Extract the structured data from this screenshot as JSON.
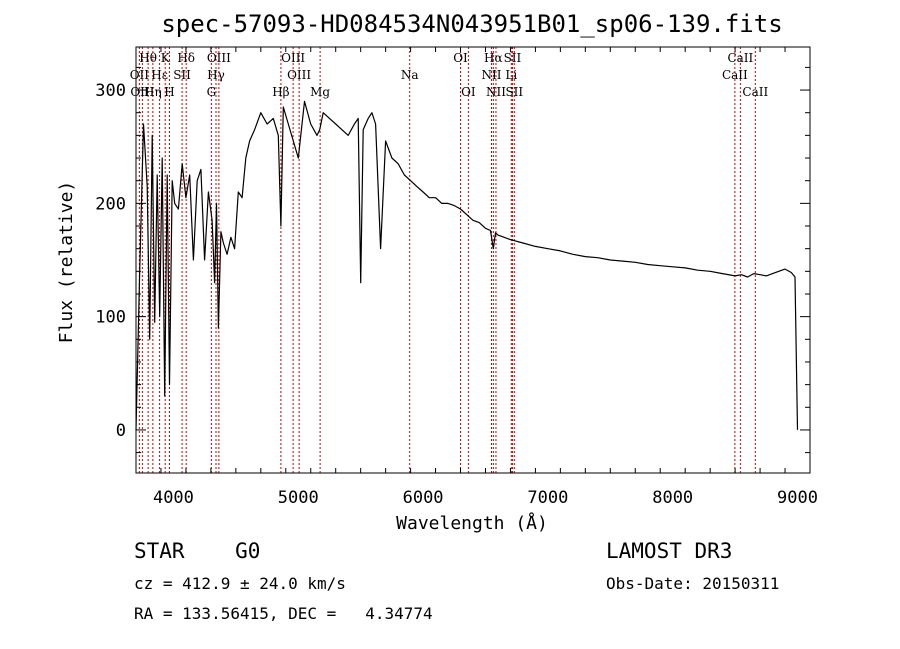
{
  "chart_data": {
    "type": "line",
    "title": "spec-57093-HD084534N043951B01_sp06-139.fits",
    "xlabel": "Wavelength (Å)",
    "ylabel": "Flux (relative)",
    "xlim": [
      3700,
      9100
    ],
    "ylim": [
      -38,
      338
    ],
    "xticks": [
      4000,
      5000,
      6000,
      7000,
      8000,
      9000
    ],
    "yticks": [
      0,
      100,
      200,
      300
    ],
    "series": [
      {
        "name": "flux",
        "x": [
          3700,
          3730,
          3760,
          3790,
          3810,
          3830,
          3850,
          3870,
          3890,
          3910,
          3930,
          3950,
          3968,
          3990,
          4010,
          4040,
          4070,
          4100,
          4130,
          4160,
          4190,
          4220,
          4250,
          4280,
          4310,
          4330,
          4345,
          4360,
          4380,
          4400,
          4430,
          4460,
          4490,
          4520,
          4550,
          4580,
          4610,
          4650,
          4700,
          4750,
          4800,
          4840,
          4861,
          4880,
          4920,
          4960,
          5000,
          5050,
          5100,
          5150,
          5172,
          5200,
          5250,
          5300,
          5350,
          5400,
          5450,
          5480,
          5500,
          5520,
          5560,
          5590,
          5620,
          5660,
          5700,
          5750,
          5800,
          5850,
          5900,
          5950,
          6000,
          6050,
          6100,
          6150,
          6200,
          6250,
          6300,
          6350,
          6400,
          6450,
          6500,
          6540,
          6563,
          6580,
          6600,
          6650,
          6700,
          6800,
          6900,
          7000,
          7100,
          7200,
          7300,
          7400,
          7500,
          7600,
          7700,
          7800,
          7900,
          8000,
          8100,
          8200,
          8300,
          8400,
          8500,
          8550,
          8600,
          8650,
          8700,
          8750,
          8800,
          8850,
          8900,
          8950,
          8980,
          9000
        ],
        "values": [
          0,
          140,
          270,
          215,
          80,
          260,
          95,
          225,
          100,
          240,
          30,
          225,
          40,
          220,
          200,
          195,
          235,
          205,
          225,
          150,
          220,
          230,
          150,
          210,
          185,
          130,
          200,
          90,
          175,
          165,
          155,
          170,
          160,
          210,
          205,
          240,
          255,
          265,
          280,
          270,
          275,
          260,
          180,
          285,
          270,
          255,
          240,
          290,
          270,
          260,
          265,
          280,
          275,
          270,
          265,
          260,
          270,
          275,
          130,
          265,
          275,
          280,
          270,
          160,
          255,
          240,
          235,
          225,
          220,
          215,
          210,
          205,
          205,
          200,
          200,
          198,
          195,
          190,
          185,
          183,
          178,
          176,
          160,
          174,
          172,
          170,
          168,
          165,
          162,
          160,
          158,
          155,
          153,
          152,
          150,
          149,
          148,
          146,
          145,
          144,
          143,
          141,
          140,
          138,
          136,
          137,
          135,
          138,
          137,
          136,
          138,
          140,
          142,
          139,
          135,
          0
        ]
      }
    ],
    "spectral_lines": [
      {
        "label": "Hθ",
        "wavelength": 3797,
        "row": 1
      },
      {
        "label": "OII",
        "wavelength": 3727,
        "row": 2
      },
      {
        "label": "OIII",
        "wavelength": 3751,
        "row": 3
      },
      {
        "label": "K",
        "wavelength": 3934,
        "row": 1
      },
      {
        "label": "Hε",
        "wavelength": 3889,
        "row": 2
      },
      {
        "label": "Hη",
        "wavelength": 3835,
        "row": 3
      },
      {
        "label": "SII",
        "wavelength": 4069,
        "row": 2
      },
      {
        "label": "H",
        "wavelength": 3968,
        "row": 3
      },
      {
        "label": "Hδ",
        "wavelength": 4102,
        "row": 1
      },
      {
        "label": "OIII",
        "wavelength": 4364,
        "row": 1
      },
      {
        "label": "Hγ",
        "wavelength": 4341,
        "row": 2
      },
      {
        "label": "G",
        "wavelength": 4304,
        "row": 3
      },
      {
        "label": "Hβ",
        "wavelength": 4861,
        "row": 3
      },
      {
        "label": "OIII",
        "wavelength": 4959,
        "row": 1
      },
      {
        "label": "OIII",
        "wavelength": 5007,
        "row": 2
      },
      {
        "label": "Mg",
        "wavelength": 5175,
        "row": 3
      },
      {
        "label": "Na",
        "wavelength": 5893,
        "row": 2
      },
      {
        "label": "OI",
        "wavelength": 6300,
        "row": 1
      },
      {
        "label": "OI",
        "wavelength": 6363,
        "row": 3
      },
      {
        "label": "Hα",
        "wavelength": 6563,
        "row": 1
      },
      {
        "label": "SII",
        "wavelength": 6716,
        "row": 1
      },
      {
        "label": "NII",
        "wavelength": 6548,
        "row": 2
      },
      {
        "label": "Li",
        "wavelength": 6707,
        "row": 2
      },
      {
        "label": "NII",
        "wavelength": 6584,
        "row": 3
      },
      {
        "label": "SII",
        "wavelength": 6731,
        "row": 3
      },
      {
        "label": "CaII",
        "wavelength": 8542,
        "row": 1
      },
      {
        "label": "CaII",
        "wavelength": 8498,
        "row": 2
      },
      {
        "label": "CaII",
        "wavelength": 8662,
        "row": 3
      }
    ]
  },
  "info": {
    "class_line": "STAR    G0",
    "survey": "LAMOST DR3",
    "cz_line": "cz = 412.9 ± 24.0 km/s",
    "obs_date": "Obs-Date: 20150311",
    "coords_line": "RA = 133.56415, DEC =   4.34774"
  },
  "colors": {
    "line_marker": "#cc0000",
    "spectrum": "#000000",
    "axis": "#000000"
  }
}
